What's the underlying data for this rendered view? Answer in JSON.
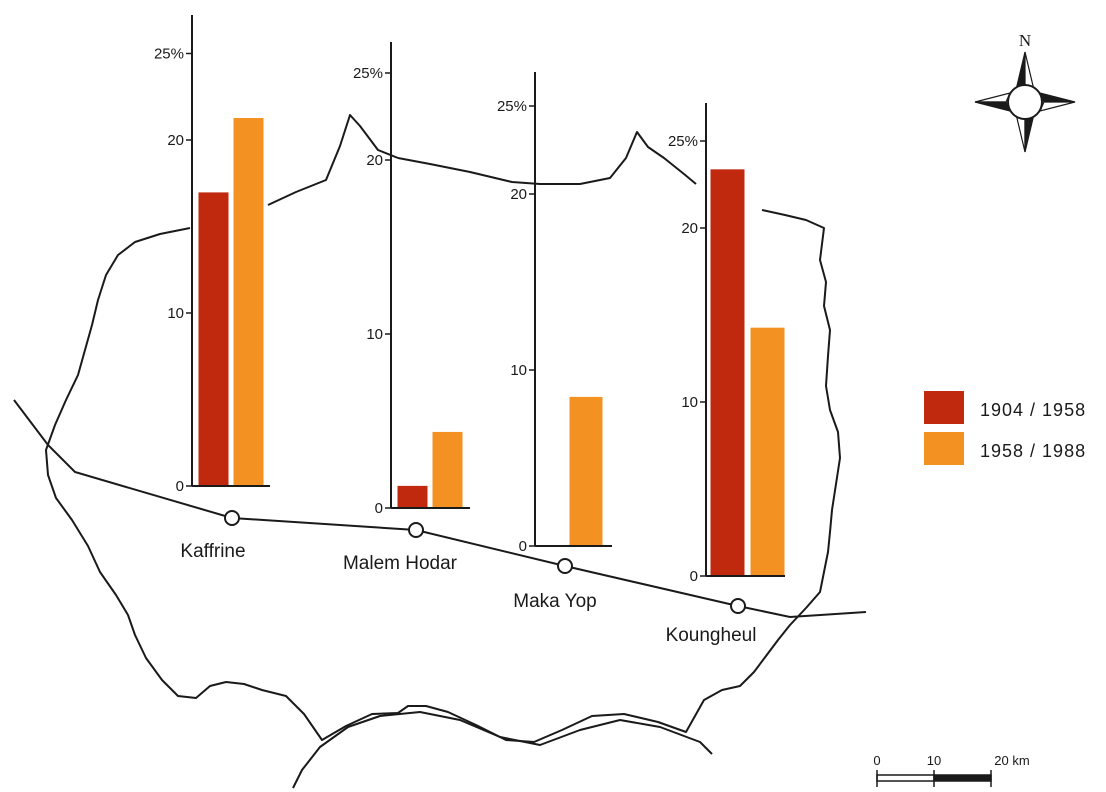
{
  "chart_data": [
    {
      "type": "bar",
      "location": "Kaffrine",
      "categories": [
        "1904 / 1958",
        "1958 / 1988"
      ],
      "values": [
        17,
        21.3
      ],
      "y_ticks": [
        "0",
        "10",
        "20",
        "25%"
      ],
      "ylim": [
        0,
        27
      ]
    },
    {
      "type": "bar",
      "location": "Malem Hodar",
      "categories": [
        "1904 / 1958",
        "1958 / 1988"
      ],
      "values": [
        1.3,
        4.4
      ],
      "y_ticks": [
        "0",
        "10",
        "20",
        "25%"
      ],
      "ylim": [
        0,
        26
      ]
    },
    {
      "type": "bar",
      "location": "Maka Yop",
      "categories": [
        "1904 / 1958",
        "1958 / 1988"
      ],
      "values": [
        0,
        8.5
      ],
      "y_ticks": [
        "0",
        "10",
        "20",
        "25%"
      ],
      "ylim": [
        0,
        27
      ]
    },
    {
      "type": "bar",
      "location": "Koungheul",
      "categories": [
        "1904 / 1958",
        "1958 / 1988"
      ],
      "values": [
        23.4,
        14.3
      ],
      "y_ticks": [
        "0",
        "10",
        "20",
        "25%"
      ],
      "ylim": [
        0,
        27
      ]
    }
  ],
  "legend": [
    {
      "label": "1904 / 1958",
      "color": "#c1290f"
    },
    {
      "label": "1958 / 1988",
      "color": "#f39223"
    }
  ],
  "compass": {
    "label": "N",
    "icon": "north-arrow-compass-icon"
  },
  "scale_bar": {
    "labels": [
      "0",
      "10",
      "20 km"
    ]
  },
  "colors": {
    "series1": "#c1290f",
    "series2": "#f39223",
    "line": "#1a1a1a"
  }
}
